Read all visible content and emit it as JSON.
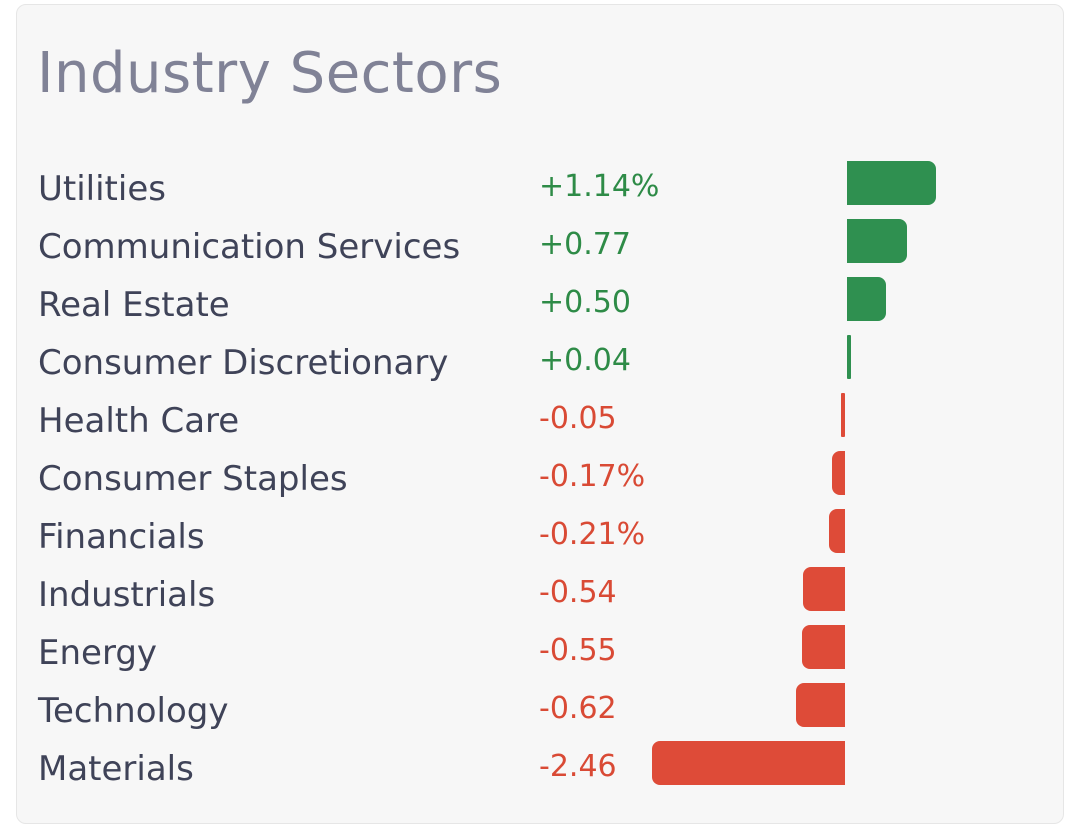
{
  "card": {
    "title": "Industry Sectors"
  },
  "colors": {
    "positive": "#2f9050",
    "negative": "#de4b38"
  },
  "chart_data": {
    "type": "bar",
    "orientation": "horizontal",
    "title": "Industry Sectors",
    "categories": [
      "Utilities",
      "Communication Services",
      "Real Estate",
      "Consumer Discretionary",
      "Health Care",
      "Consumer Staples",
      "Financials",
      "Industrials",
      "Energy",
      "Technology",
      "Materials"
    ],
    "values": [
      1.14,
      0.77,
      0.5,
      0.04,
      -0.05,
      -0.17,
      -0.21,
      -0.54,
      -0.55,
      -0.62,
      -2.46
    ],
    "value_labels": [
      "+1.14%",
      "+0.77",
      "+0.50",
      "+0.04",
      "-0.05",
      "-0.17%",
      "-0.21%",
      "-0.54",
      "-0.55",
      "-0.62",
      "-2.46"
    ],
    "xlim": [
      -2.46,
      1.14
    ]
  }
}
